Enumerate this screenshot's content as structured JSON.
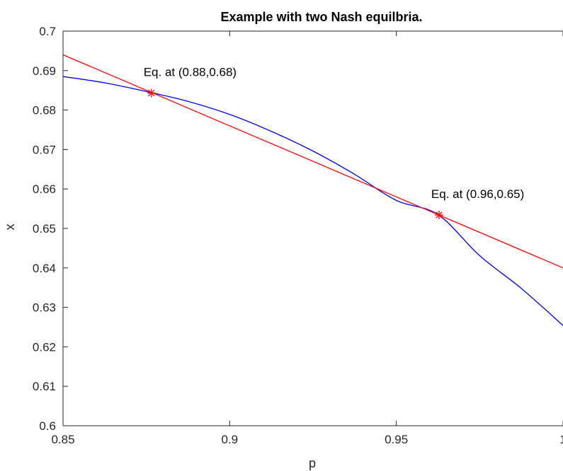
{
  "chart_data": {
    "type": "line",
    "title": "Example with two Nash equilbria.",
    "xlabel": "p",
    "ylabel": "x",
    "xlim": [
      0.85,
      1.0
    ],
    "ylim": [
      0.6,
      0.7
    ],
    "xticks": [
      0.85,
      0.9,
      0.95,
      1.0
    ],
    "xtick_labels": [
      "0.85",
      "0.9",
      "0.95",
      "1"
    ],
    "yticks": [
      0.6,
      0.61,
      0.62,
      0.63,
      0.64,
      0.65,
      0.66,
      0.67,
      0.68,
      0.69,
      0.7
    ],
    "ytick_labels": [
      "0.6",
      "0.61",
      "0.62",
      "0.63",
      "0.64",
      "0.65",
      "0.66",
      "0.67",
      "0.68",
      "0.69",
      "0.7"
    ],
    "grid": false,
    "series": [
      {
        "color": "#0000ff",
        "x": [
          0.85,
          0.8625,
          0.875,
          0.8875,
          0.9,
          0.9125,
          0.925,
          0.9375,
          0.95,
          0.9625,
          0.975,
          0.9875,
          1.0
        ],
        "y": [
          0.6885,
          0.6869,
          0.6847,
          0.6822,
          0.6789,
          0.6746,
          0.6696,
          0.6637,
          0.6571,
          0.6535,
          0.6431,
          0.6348,
          0.6254
        ]
      },
      {
        "color": "#ff0000",
        "x": [
          0.85,
          1.0
        ],
        "y": [
          0.694,
          0.64
        ]
      }
    ],
    "markers": [
      {
        "x": 0.8765,
        "y": 0.6843,
        "label": "Eq. at (0.88,0.68)",
        "color": "#ff0000"
      },
      {
        "x": 0.9628,
        "y": 0.6534,
        "label": "Eq. at (0.96,0.65)",
        "color": "#ff0000"
      }
    ]
  }
}
